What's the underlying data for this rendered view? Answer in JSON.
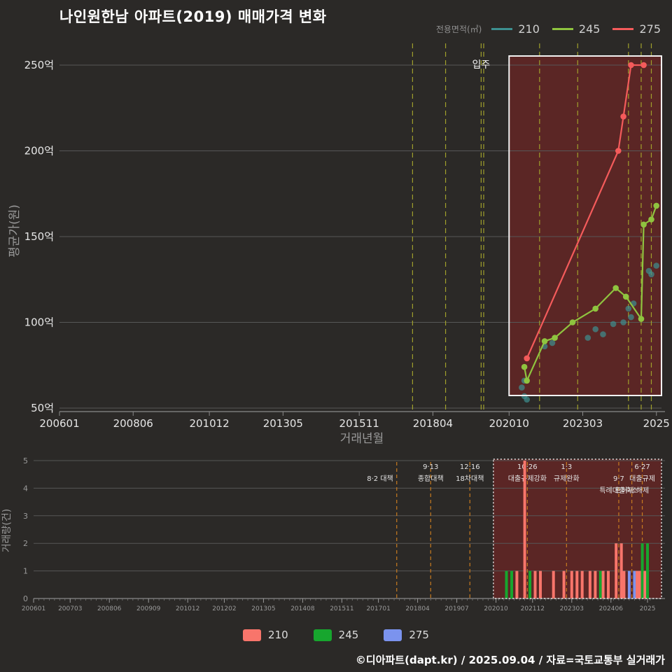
{
  "title": "나인원한남 아파트(2019) 매매가격 변화",
  "footer": "©디아파트(dapt.kr) / 2025.09.04 / 자료=국토교통부 실거래가",
  "legend_top": {
    "label": "전용면적(㎡)",
    "items": [
      {
        "name": "210",
        "color": "#3d9090"
      },
      {
        "name": "245",
        "color": "#8fc43f"
      },
      {
        "name": "275",
        "color": "#f45b5b"
      }
    ]
  },
  "legend_bottom": {
    "items": [
      {
        "name": "210",
        "color": "#f8756b"
      },
      {
        "name": "245",
        "color": "#17a62e"
      },
      {
        "name": "275",
        "color": "#7b93ee"
      }
    ]
  },
  "chart_data": [
    {
      "type": "line",
      "title": "매매가격 변화",
      "xlabel": "거래년월",
      "ylabel": "평균가(원)",
      "unit": "억원",
      "ylim": [
        48,
        257
      ],
      "grid": true,
      "x_ticks": [
        {
          "pos": "2006-01",
          "label": "200601"
        },
        {
          "pos": "2008-06",
          "label": "200806"
        },
        {
          "pos": "2010-12",
          "label": "201012"
        },
        {
          "pos": "2013-05",
          "label": "201305"
        },
        {
          "pos": "2015-11",
          "label": "201511"
        },
        {
          "pos": "2018-04",
          "label": "201804"
        },
        {
          "pos": "2020-10",
          "label": "202010"
        },
        {
          "pos": "2023-03",
          "label": "202303"
        },
        {
          "pos": "2025-08",
          "label": "2025"
        }
      ],
      "y_ticks": [
        {
          "value": 50,
          "label": "50억"
        },
        {
          "value": 100,
          "label": "100억"
        },
        {
          "value": 150,
          "label": "150억"
        },
        {
          "value": 200,
          "label": "200억"
        },
        {
          "value": 250,
          "label": "250억"
        }
      ],
      "move_in": {
        "date": "2019-11",
        "label": "입주"
      },
      "event_dates": [
        "2017-08",
        "2018-09",
        "2019-12",
        "2021-10",
        "2023-01",
        "2024-09",
        "2025-02",
        "2025-06"
      ],
      "highlight_box": {
        "from": "2020-10",
        "to": "2025-10",
        "fill": "rgba(150,35,35,0.45)",
        "border": "#f2f2f2"
      },
      "series": [
        {
          "name": "210",
          "style": "scatter",
          "color": "#3d9090",
          "marker_opacity": 0.7,
          "points": [
            [
              "2021-03",
              62
            ],
            [
              "2021-04",
              66
            ],
            [
              "2021-04",
              57
            ],
            [
              "2021-05",
              55
            ],
            [
              "2021-12",
              86
            ],
            [
              "2022-03",
              88
            ],
            [
              "2023-05",
              91
            ],
            [
              "2023-08",
              96
            ],
            [
              "2023-11",
              93
            ],
            [
              "2024-03",
              99
            ],
            [
              "2024-07",
              100
            ],
            [
              "2024-09",
              108
            ],
            [
              "2024-10",
              103
            ],
            [
              "2024-11",
              111
            ],
            [
              "2025-05",
              130
            ],
            [
              "2025-06",
              128
            ],
            [
              "2025-08",
              133
            ]
          ]
        },
        {
          "name": "245",
          "style": "line",
          "color": "#8fc43f",
          "marker_opacity": 1,
          "points": [
            [
              "2021-04",
              74
            ],
            [
              "2021-05",
              66
            ],
            [
              "2021-12",
              89
            ],
            [
              "2022-04",
              91
            ],
            [
              "2022-11",
              100
            ],
            [
              "2023-08",
              108
            ],
            [
              "2024-04",
              120
            ],
            [
              "2024-08",
              115
            ],
            [
              "2025-02",
              102
            ],
            [
              "2025-03",
              157
            ],
            [
              "2025-06",
              160
            ],
            [
              "2025-08",
              168
            ]
          ]
        },
        {
          "name": "275",
          "style": "line",
          "color": "#f45b5b",
          "marker_opacity": 1,
          "points": [
            [
              "2021-05",
              79
            ],
            [
              "2024-05",
              200
            ],
            [
              "2024-07",
              220
            ],
            [
              "2024-10",
              250
            ],
            [
              "2025-03",
              250
            ]
          ]
        }
      ]
    },
    {
      "type": "bar",
      "ylabel": "거래량(건)",
      "unit": "건",
      "ylim": [
        0,
        5
      ],
      "y_ticks": [
        0,
        1,
        2,
        3,
        4,
        5
      ],
      "x_ticks": [
        {
          "pos": "2006-01",
          "label": "200601"
        },
        {
          "pos": "2007-03",
          "label": "200703"
        },
        {
          "pos": "2008-06",
          "label": "200806"
        },
        {
          "pos": "2009-09",
          "label": "200909"
        },
        {
          "pos": "2010-12",
          "label": "201012"
        },
        {
          "pos": "2012-02",
          "label": "201202"
        },
        {
          "pos": "2013-05",
          "label": "201305"
        },
        {
          "pos": "2014-08",
          "label": "201408"
        },
        {
          "pos": "2015-11",
          "label": "201511"
        },
        {
          "pos": "2017-01",
          "label": "201701"
        },
        {
          "pos": "2018-04",
          "label": "201804"
        },
        {
          "pos": "2019-07",
          "label": "201907"
        },
        {
          "pos": "2020-10",
          "label": "202010"
        },
        {
          "pos": "2021-12",
          "label": "202112"
        },
        {
          "pos": "2023-03",
          "label": "202303"
        },
        {
          "pos": "2024-06",
          "label": "202406"
        },
        {
          "pos": "2025-08",
          "label": "2025"
        }
      ],
      "colors": {
        "210": "#f8756b",
        "245": "#17a62e",
        "275": "#7b93ee"
      },
      "highlight_box": {
        "from": "2020-09",
        "to": "2025-10",
        "fill": "rgba(150,35,35,0.45)",
        "border": "#e8e8e8"
      },
      "events": [
        {
          "date": "2017-08",
          "lines": [
            "8·2 대책"
          ],
          "row": 1,
          "align": "end"
        },
        {
          "date": "2018-09",
          "lines": [
            "9·13",
            "종합대책"
          ],
          "row": 0,
          "align": "middle"
        },
        {
          "date": "2019-12",
          "lines": [
            "12·16",
            "18차대책"
          ],
          "row": 0,
          "align": "middle"
        },
        {
          "date": "2021-10",
          "lines": [
            "10·26",
            "대출규제강화"
          ],
          "row": 0,
          "align": "middle"
        },
        {
          "date": "2023-01",
          "lines": [
            "1·3",
            "규제완화"
          ],
          "row": 0,
          "align": "middle"
        },
        {
          "date": "2024-09",
          "lines": [
            "9·7",
            "특례대출축소"
          ],
          "row": 1,
          "align": "middle"
        },
        {
          "date": "2025-02",
          "lines": [
            "토허제 해제"
          ],
          "row": 2,
          "align": "middle"
        },
        {
          "date": "2025-06",
          "lines": [
            "6·27",
            "대출규제"
          ],
          "row": 0,
          "align": "middle"
        }
      ],
      "bars": [
        {
          "month": "2021-02",
          "series": "245",
          "count": 1
        },
        {
          "month": "2021-04",
          "series": "245",
          "count": 1
        },
        {
          "month": "2021-06",
          "series": "210",
          "count": 1
        },
        {
          "month": "2021-09",
          "series": "210",
          "count": 5
        },
        {
          "month": "2021-11",
          "series": "245",
          "count": 1
        },
        {
          "month": "2022-01",
          "series": "210",
          "count": 1
        },
        {
          "month": "2022-03",
          "series": "210",
          "count": 1
        },
        {
          "month": "2022-08",
          "series": "210",
          "count": 1
        },
        {
          "month": "2022-12",
          "series": "210",
          "count": 1
        },
        {
          "month": "2023-03",
          "series": "210",
          "count": 1
        },
        {
          "month": "2023-05",
          "series": "210",
          "count": 1
        },
        {
          "month": "2023-07",
          "series": "210",
          "count": 1
        },
        {
          "month": "2023-10",
          "series": "210",
          "count": 1
        },
        {
          "month": "2023-12",
          "series": "210",
          "count": 1
        },
        {
          "month": "2024-02",
          "series": "245",
          "count": 1
        },
        {
          "month": "2024-03",
          "series": "210",
          "count": 1
        },
        {
          "month": "2024-05",
          "series": "210",
          "count": 1
        },
        {
          "month": "2024-08",
          "series": "210",
          "count": 2
        },
        {
          "month": "2024-10",
          "series": "210",
          "count": 2
        },
        {
          "month": "2024-11",
          "series": "210",
          "count": 1
        },
        {
          "month": "2025-01",
          "series": "275",
          "count": 1
        },
        {
          "month": "2025-03",
          "series": "275",
          "count": 1
        },
        {
          "month": "2025-04",
          "series": "210",
          "count": 1
        },
        {
          "month": "2025-05",
          "series": "210",
          "count": 1
        },
        {
          "month": "2025-06",
          "series": "245",
          "count": 2
        },
        {
          "month": "2025-07",
          "series": "210",
          "count": 1
        },
        {
          "month": "2025-08",
          "series": "245",
          "count": 2
        }
      ]
    }
  ]
}
